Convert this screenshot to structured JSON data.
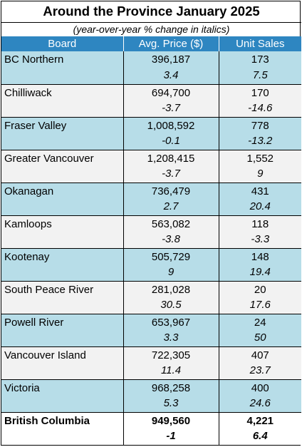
{
  "title": "Around the Province January 2025",
  "subtitle": "(year-over-year % change in italics)",
  "headers": {
    "board": "Board",
    "price": "Avg. Price ($)",
    "sales": "Unit Sales"
  },
  "rows": [
    {
      "board": "BC Northern",
      "price": "396,187",
      "sales": "173",
      "price_change": "3.4",
      "sales_change": "7.5"
    },
    {
      "board": "Chilliwack",
      "price": "694,700",
      "sales": "170",
      "price_change": "-3.7",
      "sales_change": "-14.6"
    },
    {
      "board": "Fraser Valley",
      "price": "1,008,592",
      "sales": "778",
      "price_change": "-0.1",
      "sales_change": "-13.2"
    },
    {
      "board": "Greater Vancouver",
      "price": "1,208,415",
      "sales": "1,552",
      "price_change": "-3.7",
      "sales_change": "9"
    },
    {
      "board": "Okanagan",
      "price": "736,479",
      "sales": "431",
      "price_change": "2.7",
      "sales_change": "20.4"
    },
    {
      "board": "Kamloops",
      "price": "563,082",
      "sales": "118",
      "price_change": "-3.8",
      "sales_change": "-3.3"
    },
    {
      "board": "Kootenay",
      "price": "505,729",
      "sales": "148",
      "price_change": "9",
      "sales_change": "19.4"
    },
    {
      "board": "South Peace River",
      "price": "281,028",
      "sales": "20",
      "price_change": "30.5",
      "sales_change": "17.6"
    },
    {
      "board": "Powell River",
      "price": "653,967",
      "sales": "24",
      "price_change": "3.3",
      "sales_change": "50"
    },
    {
      "board": "Vancouver Island",
      "price": "722,305",
      "sales": "407",
      "price_change": "11.4",
      "sales_change": "23.7"
    },
    {
      "board": "Victoria",
      "price": "968,258",
      "sales": "400",
      "price_change": "5.3",
      "sales_change": "24.6"
    }
  ],
  "total": {
    "board": "British Columbia",
    "price": "949,560",
    "sales": "4,221",
    "price_change": "-1",
    "sales_change": "6.4"
  },
  "colors": {
    "header_blue": "#2e86c1",
    "row_blue": "#b7dde8",
    "row_grey": "#f2f2f2"
  }
}
